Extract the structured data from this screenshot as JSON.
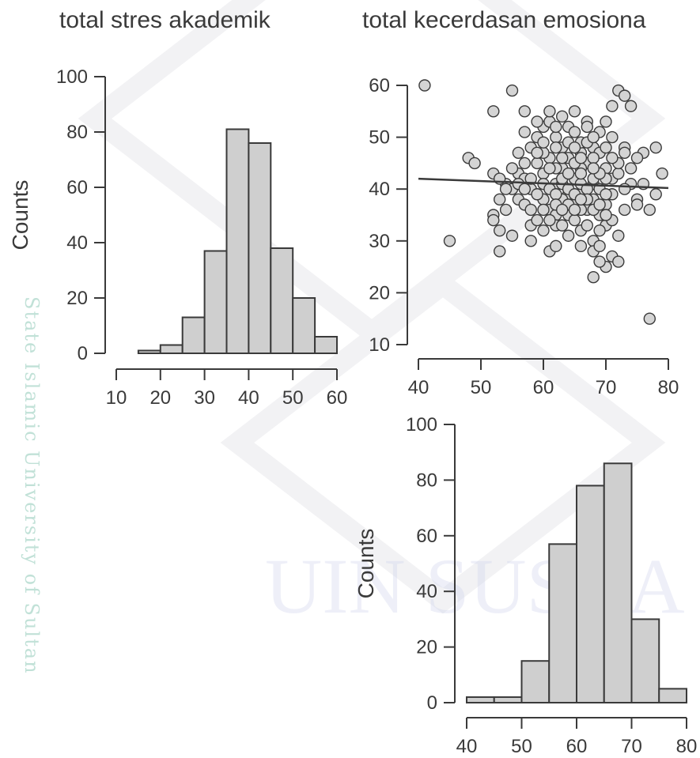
{
  "watermark": {
    "side_text": "State Islamic University of Sultan",
    "center_text": "UIN SUSKA R"
  },
  "chart_data": [
    {
      "id": "hist_stres",
      "type": "bar",
      "title": "total stres akademik",
      "ylabel": "Counts",
      "bins": [
        [
          15,
          20
        ],
        [
          20,
          25
        ],
        [
          25,
          30
        ],
        [
          30,
          35
        ],
        [
          35,
          40
        ],
        [
          40,
          45
        ],
        [
          45,
          50
        ],
        [
          50,
          55
        ],
        [
          55,
          60
        ]
      ],
      "values": [
        1,
        3,
        13,
        37,
        81,
        76,
        38,
        20,
        6
      ],
      "xlim": [
        10,
        60
      ],
      "xticks": [
        10,
        20,
        30,
        40,
        50,
        60
      ],
      "ylim": [
        0,
        100
      ],
      "yticks": [
        0,
        20,
        40,
        60,
        80,
        100
      ]
    },
    {
      "id": "scatter",
      "type": "scatter",
      "title": "total kecerdasan emosiona",
      "xlim": [
        40,
        80
      ],
      "xticks": [
        40,
        50,
        60,
        70,
        80
      ],
      "ylim": [
        10,
        60
      ],
      "yticks": [
        10,
        20,
        30,
        40,
        50,
        60
      ],
      "regression": {
        "x0": 40,
        "y0": 42,
        "x1": 80,
        "y1": 40.2
      },
      "points": [
        [
          41,
          60
        ],
        [
          45,
          30
        ],
        [
          77,
          15
        ],
        [
          48,
          46
        ],
        [
          49,
          45
        ],
        [
          52,
          55
        ],
        [
          55,
          59
        ],
        [
          57,
          55
        ],
        [
          72,
          59
        ],
        [
          73,
          58
        ],
        [
          74,
          56
        ],
        [
          71,
          56
        ],
        [
          68,
          23
        ],
        [
          70,
          25
        ],
        [
          69,
          26
        ],
        [
          71,
          27
        ],
        [
          72,
          26
        ],
        [
          79,
          43
        ],
        [
          78,
          48
        ],
        [
          76,
          47
        ],
        [
          75,
          46
        ],
        [
          78,
          39
        ],
        [
          77,
          36
        ],
        [
          53,
          28
        ],
        [
          55,
          31
        ],
        [
          58,
          30
        ],
        [
          61,
          28
        ],
        [
          62,
          29
        ],
        [
          52,
          35
        ],
        [
          52,
          34
        ],
        [
          53,
          32
        ],
        [
          54,
          36
        ],
        [
          56,
          43
        ],
        [
          57,
          42
        ],
        [
          53,
          38
        ],
        [
          54,
          41
        ],
        [
          52,
          43
        ],
        [
          58,
          40
        ],
        [
          59,
          45
        ],
        [
          60,
          43
        ],
        [
          61,
          46
        ],
        [
          62,
          41
        ],
        [
          63,
          44
        ],
        [
          64,
          39
        ],
        [
          65,
          42
        ],
        [
          66,
          47
        ],
        [
          67,
          45
        ],
        [
          68,
          41
        ],
        [
          69,
          40
        ],
        [
          70,
          44
        ],
        [
          71,
          42
        ],
        [
          60,
          38
        ],
        [
          61,
          36
        ],
        [
          62,
          35
        ],
        [
          63,
          38
        ],
        [
          64,
          35
        ],
        [
          65,
          37
        ],
        [
          66,
          39
        ],
        [
          67,
          36
        ],
        [
          68,
          38
        ],
        [
          69,
          35
        ],
        [
          70,
          37
        ],
        [
          59,
          50
        ],
        [
          60,
          52
        ],
        [
          61,
          53
        ],
        [
          62,
          50
        ],
        [
          63,
          48
        ],
        [
          64,
          52
        ],
        [
          65,
          51
        ],
        [
          66,
          49
        ],
        [
          67,
          53
        ],
        [
          68,
          48
        ],
        [
          69,
          47
        ],
        [
          70,
          53
        ],
        [
          58,
          33
        ],
        [
          59,
          34
        ],
        [
          60,
          32
        ],
        [
          62,
          33
        ],
        [
          64,
          31
        ],
        [
          66,
          32
        ],
        [
          68,
          30
        ],
        [
          70,
          33
        ],
        [
          72,
          31
        ],
        [
          56,
          47
        ],
        [
          57,
          45
        ],
        [
          58,
          48
        ],
        [
          60,
          47
        ],
        [
          62,
          44
        ],
        [
          64,
          46
        ],
        [
          66,
          44
        ],
        [
          68,
          46
        ],
        [
          70,
          42
        ],
        [
          72,
          43
        ],
        [
          74,
          41
        ],
        [
          55,
          40
        ],
        [
          56,
          38
        ],
        [
          57,
          37
        ],
        [
          58,
          36
        ],
        [
          59,
          39
        ],
        [
          60,
          41
        ],
        [
          61,
          40
        ],
        [
          62,
          39
        ],
        [
          63,
          41
        ],
        [
          64,
          40
        ],
        [
          65,
          39
        ],
        [
          66,
          41
        ],
        [
          67,
          40
        ],
        [
          68,
          42
        ],
        [
          69,
          43
        ],
        [
          71,
          39
        ],
        [
          73,
          40
        ],
        [
          75,
          38
        ],
        [
          76,
          41
        ],
        [
          63,
          54
        ],
        [
          65,
          55
        ],
        [
          67,
          52
        ],
        [
          69,
          51
        ],
        [
          71,
          50
        ],
        [
          73,
          48
        ],
        [
          61,
          34
        ],
        [
          63,
          33
        ],
        [
          65,
          34
        ],
        [
          67,
          33
        ],
        [
          69,
          32
        ],
        [
          71,
          34
        ],
        [
          73,
          36
        ],
        [
          57,
          51
        ],
        [
          59,
          53
        ],
        [
          61,
          55
        ],
        [
          62,
          48
        ],
        [
          66,
          43
        ],
        [
          67,
          38
        ],
        [
          64,
          37
        ],
        [
          65,
          45
        ],
        [
          63,
          42
        ],
        [
          66,
          36
        ],
        [
          70,
          39
        ],
        [
          60,
          36
        ],
        [
          58,
          42
        ],
        [
          56,
          41
        ],
        [
          72,
          45
        ],
        [
          74,
          44
        ],
        [
          75,
          37
        ],
        [
          68,
          28
        ],
        [
          66,
          29
        ],
        [
          69,
          29
        ],
        [
          54,
          40
        ],
        [
          55,
          44
        ],
        [
          53,
          42
        ],
        [
          71,
          46
        ],
        [
          73,
          47
        ],
        [
          60,
          49
        ],
        [
          62,
          52
        ],
        [
          64,
          49
        ],
        [
          67,
          49
        ],
        [
          68,
          50
        ],
        [
          70,
          48
        ],
        [
          65,
          48
        ],
        [
          63,
          46
        ],
        [
          61,
          44
        ],
        [
          59,
          47
        ],
        [
          57,
          40
        ],
        [
          66,
          38
        ],
        [
          68,
          36
        ],
        [
          70,
          35
        ],
        [
          62,
          37
        ],
        [
          64,
          43
        ],
        [
          66,
          46
        ],
        [
          68,
          44
        ],
        [
          69,
          37
        ],
        [
          65,
          36
        ],
        [
          63,
          36
        ]
      ]
    },
    {
      "id": "hist_emosi",
      "type": "bar",
      "ylabel": "Counts",
      "bins": [
        [
          40,
          45
        ],
        [
          45,
          50
        ],
        [
          50,
          55
        ],
        [
          55,
          60
        ],
        [
          60,
          65
        ],
        [
          65,
          70
        ],
        [
          70,
          75
        ],
        [
          75,
          80
        ]
      ],
      "values": [
        2,
        2,
        15,
        57,
        78,
        86,
        30,
        5
      ],
      "xlim": [
        40,
        80
      ],
      "xticks": [
        40,
        50,
        60,
        70,
        80
      ],
      "ylim": [
        0,
        100
      ],
      "yticks": [
        0,
        20,
        40,
        60,
        80,
        100
      ]
    }
  ]
}
